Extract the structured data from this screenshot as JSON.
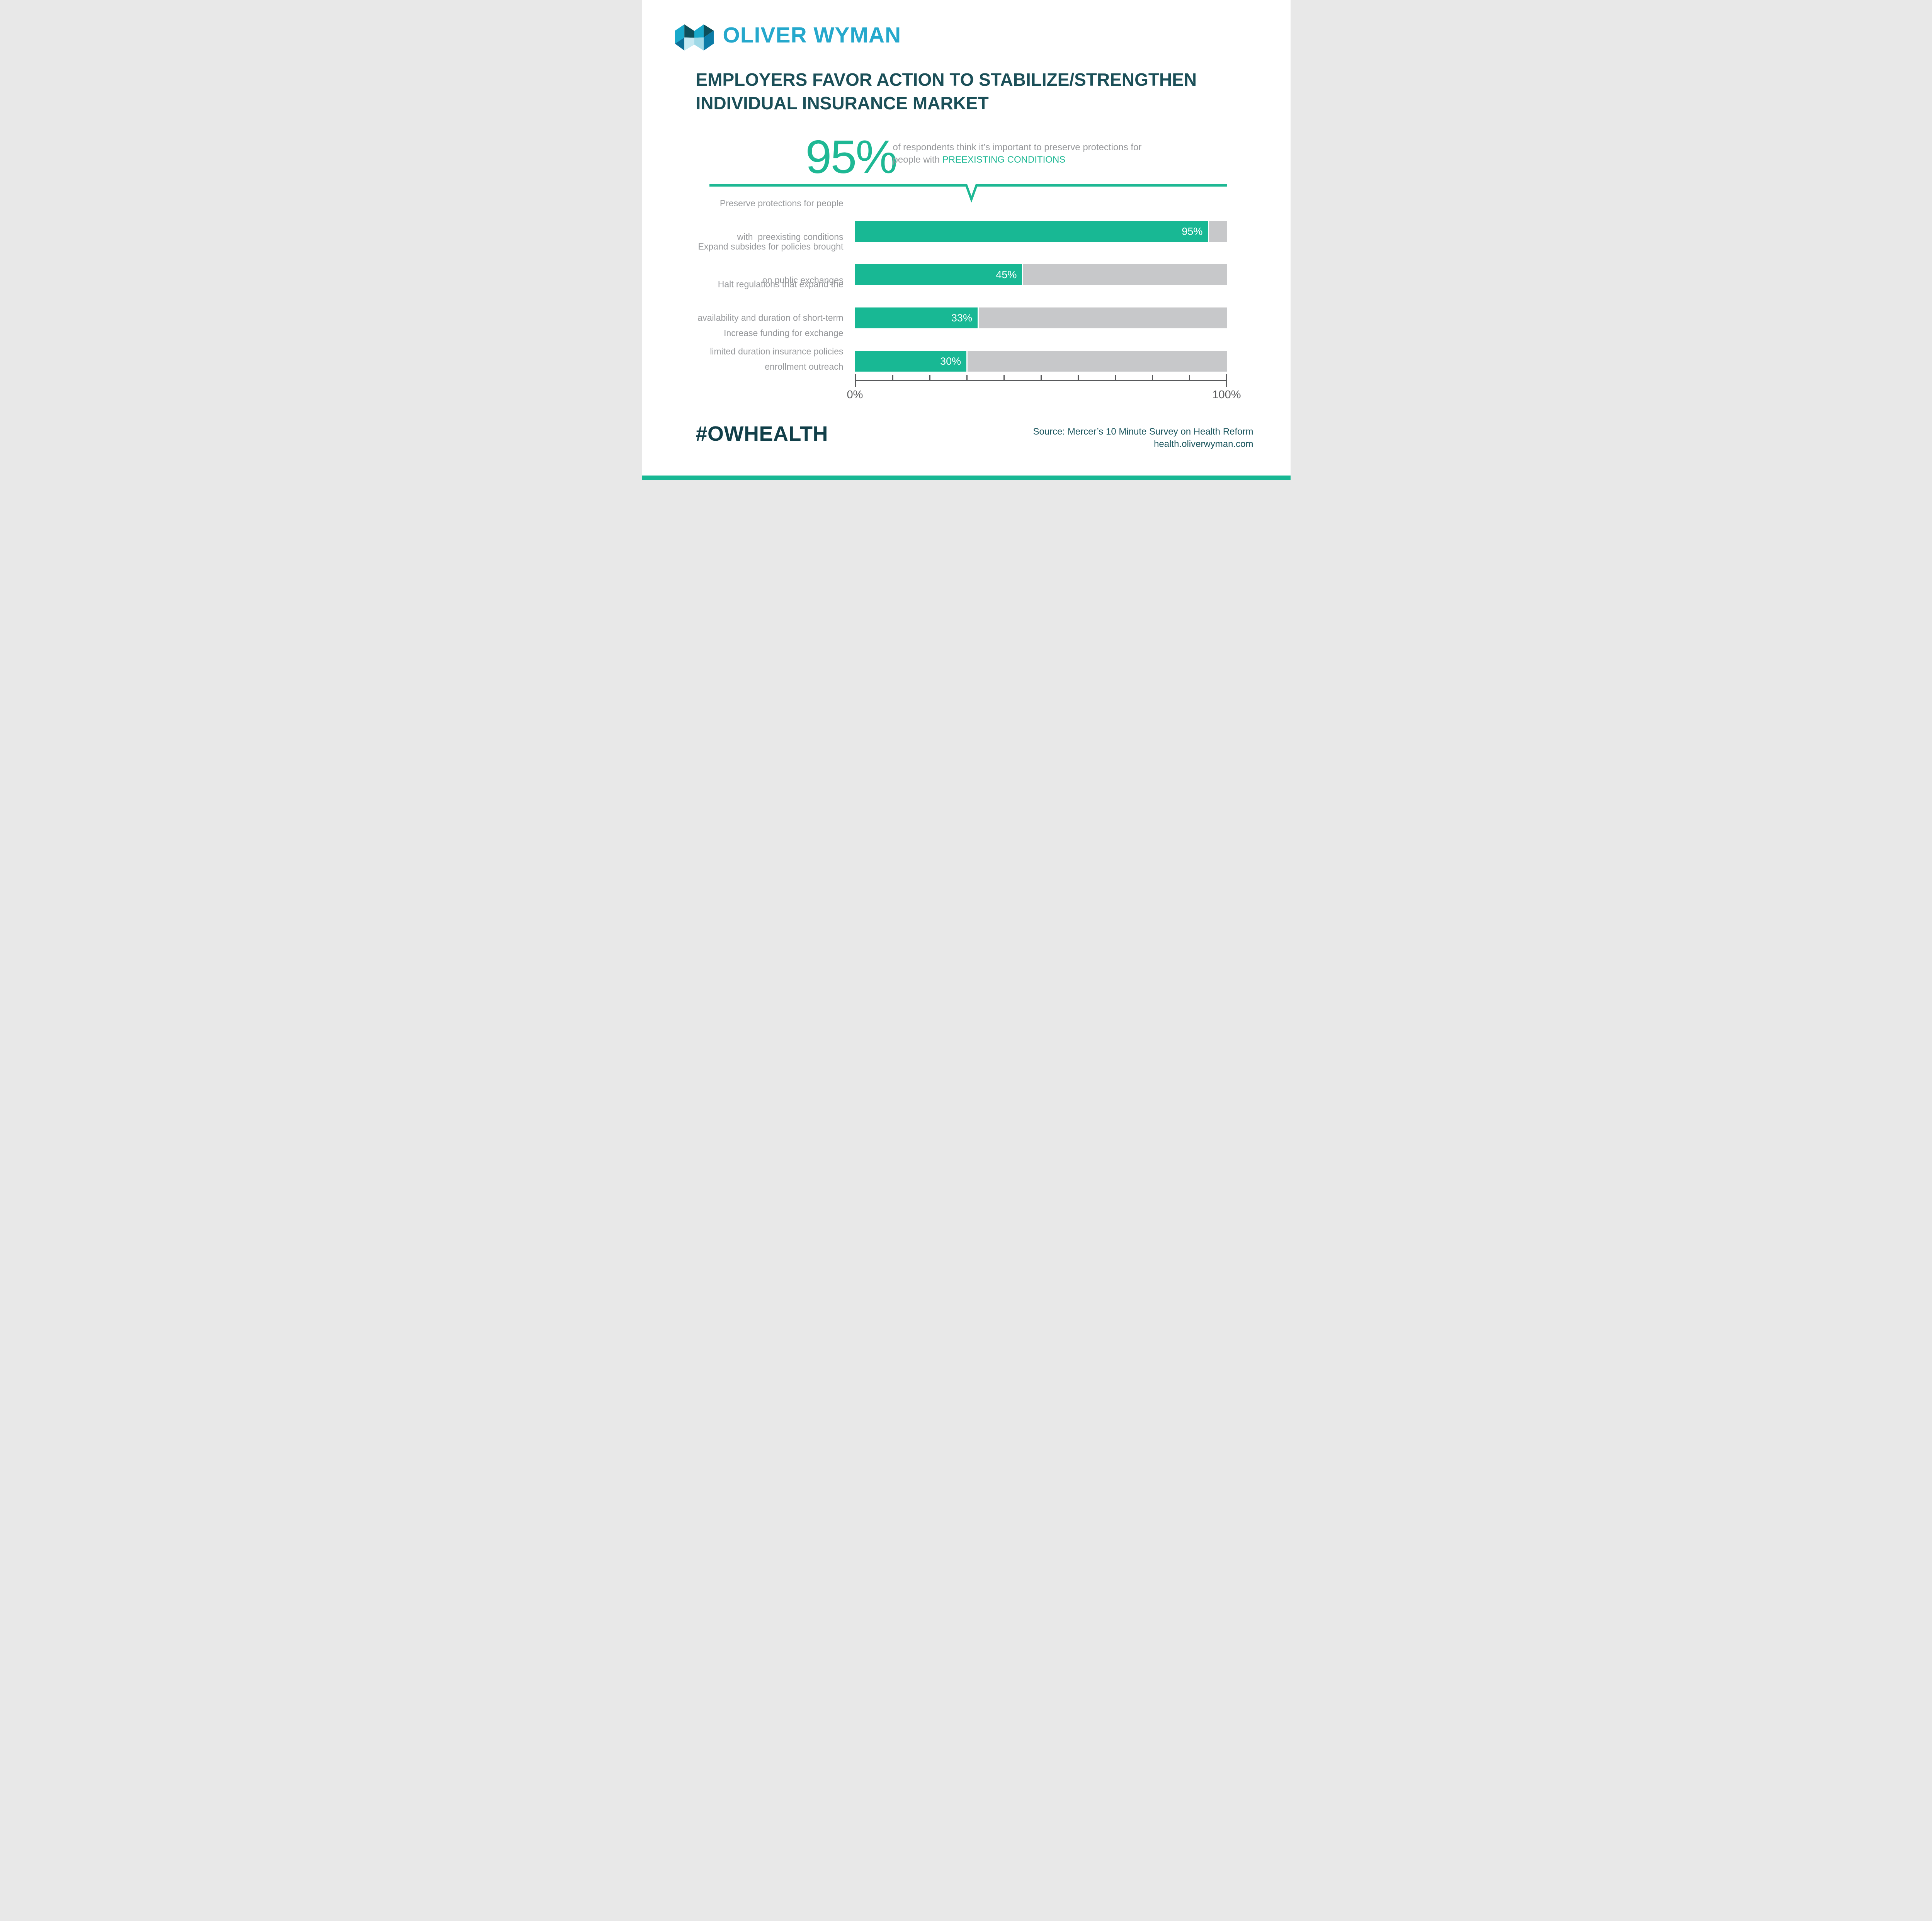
{
  "page": {
    "background": "#FFFFFF",
    "accent_green": "#18B894",
    "accent_cyan": "#25A8CC",
    "dark_teal": "#1B4F58"
  },
  "header": {
    "logo_text": "OLIVER WYMAN"
  },
  "title": {
    "line1": "EMPLOYERS FAVOR ACTION TO STABILIZE/STRENGTHEN",
    "line2": "INDIVIDUAL INSURANCE MARKET"
  },
  "callout": {
    "stat": "95%",
    "line1": "of respondents think it’s important to preserve protections for",
    "line2_prefix": "people with ",
    "line2_highlight": "PREEXISTING CONDITIONS"
  },
  "chart_data": {
    "type": "bar",
    "orientation": "horizontal",
    "title": "",
    "categories": [
      "Preserve protections for people with preexisting conditions",
      "Expand subsides for policies brought on public exchanges",
      "Halt regulations that expand the availability and duration of short-term limited duration insurance policies",
      "Increase funding for exchange enrollment outreach"
    ],
    "categories_lines": [
      [
        "Preserve protections for people",
        "with  preexisting conditions"
      ],
      [
        "Expand subsides for policies brought",
        "on public exchanges"
      ],
      [
        "Halt regulations that expand the",
        "availability and duration of short-term",
        "limited duration insurance policies"
      ],
      [
        "Increase funding for exchange",
        "enrollment outreach"
      ]
    ],
    "values": [
      95,
      45,
      33,
      30
    ],
    "value_labels": [
      "95%",
      "45%",
      "33%",
      "30%"
    ],
    "xlim": [
      0,
      100
    ],
    "x_tick_start_label": "0%",
    "x_tick_end_label": "100%",
    "x_tick_count": 11,
    "bar_color": "#18B894",
    "track_color": "#C7C8CA",
    "grid": false,
    "legend": false
  },
  "footer": {
    "hashtag": "#OWHEALTH",
    "source_line1": "Source: Mercer’s 10 Minute Survey on Health Reform",
    "source_line2": "health.oliverwyman.com"
  }
}
